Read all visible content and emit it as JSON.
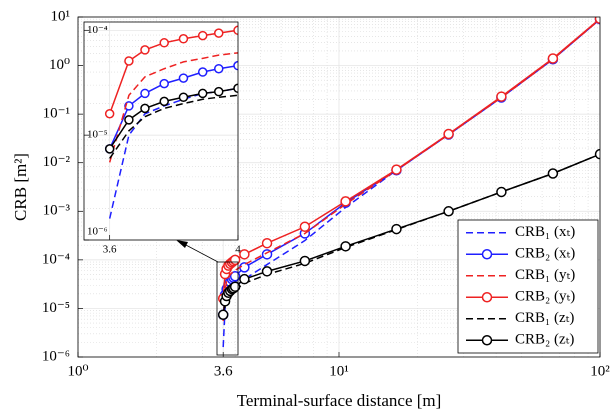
{
  "chart_data": {
    "type": "line",
    "xlabel": "Terminal-surface distance [m]",
    "ylabel": "CRB [m²]",
    "x_log": true,
    "y_log": true,
    "grid": true,
    "minor_grid": true,
    "legend": "lower right",
    "xlim": [
      1,
      100
    ],
    "xticks": [
      {
        "value": 1,
        "label": "10⁰"
      },
      3.6,
      {
        "value": 10,
        "label": "10¹"
      },
      {
        "value": 100,
        "label": "10²"
      }
    ],
    "ylim": [
      1e-06,
      10
    ],
    "yticks": [
      {
        "value": 1e-06,
        "label": "10⁻⁶"
      },
      {
        "value": 1e-05,
        "label": "10⁻⁵"
      },
      {
        "value": 0.0001,
        "label": "10⁻⁴"
      },
      {
        "value": 0.001,
        "label": "10⁻³"
      },
      {
        "value": 0.01,
        "label": "10⁻²"
      },
      {
        "value": 0.1,
        "label": "10⁻¹"
      },
      {
        "value": 1,
        "label": "10⁰"
      },
      {
        "value": 10,
        "label": "10¹"
      }
    ],
    "x": [
      3.6,
      3.66,
      3.71,
      3.77,
      3.83,
      3.89,
      3.94,
      4.0,
      4.34,
      5.3,
      7.4,
      10.6,
      16.6,
      26.3,
      41.9,
      66,
      100
    ],
    "series": [
      {
        "name": "CRB₁ (xₜ)",
        "color": "#1f1fff",
        "dashed": true,
        "marker": false,
        "values": [
          1.6e-06,
          1e-05,
          1.6e-05,
          1.9e-05,
          2.2e-05,
          2.5e-05,
          2.6e-05,
          2.8e-05,
          4e-05,
          8e-05,
          0.00025,
          0.0012,
          0.007,
          0.038,
          0.22,
          1.35,
          9
        ]
      },
      {
        "name": "CRB₂ (xₜ)",
        "color": "#1f1fff",
        "dashed": false,
        "marker": true,
        "values": [
          7.4e-06,
          1.9e-05,
          2.5e-05,
          3.1e-05,
          3.5e-05,
          4e-05,
          4.3e-05,
          4.6e-05,
          7e-05,
          0.00013,
          0.00035,
          0.0015,
          0.007,
          0.038,
          0.22,
          1.35,
          9
        ]
      },
      {
        "name": "CRB₁ (yₜ)",
        "color": "#ee2222",
        "dashed": true,
        "marker": false,
        "values": [
          5.5e-06,
          2.4e-05,
          3.6e-05,
          4.3e-05,
          5e-05,
          5.4e-05,
          5.8e-05,
          6.1e-05,
          8e-05,
          0.00014,
          0.00035,
          0.0014,
          0.007,
          0.038,
          0.22,
          1.35,
          9
        ]
      },
      {
        "name": "CRB₂ (yₜ)",
        "color": "#ee2222",
        "dashed": false,
        "marker": true,
        "values": [
          1.6e-05,
          5.1e-05,
          6.5e-05,
          7.6e-05,
          8.3e-05,
          8.9e-05,
          9.4e-05,
          0.0001,
          0.00013,
          0.00022,
          0.00048,
          0.0016,
          0.0072,
          0.039,
          0.23,
          1.4,
          9.2
        ]
      },
      {
        "name": "CRB₁ (zₜ)",
        "color": "#000000",
        "dashed": true,
        "marker": false,
        "values": [
          6e-06,
          1.1e-05,
          1.5e-05,
          1.8e-05,
          2e-05,
          2.2e-05,
          2.3e-05,
          2.4e-05,
          3.3e-05,
          5e-05,
          8.5e-05,
          0.00018,
          0.00042,
          0.001,
          0.0025,
          0.006,
          0.015
        ]
      },
      {
        "name": "CRB₂ (zₜ)",
        "color": "#000000",
        "dashed": false,
        "marker": true,
        "values": [
          7.4e-06,
          1.4e-05,
          1.8e-05,
          2.1e-05,
          2.3e-05,
          2.5e-05,
          2.6e-05,
          2.8e-05,
          4e-05,
          5.8e-05,
          9.5e-05,
          0.00019,
          0.00043,
          0.001,
          0.0025,
          0.006,
          0.015
        ]
      }
    ],
    "inset": {
      "x_log": false,
      "y_log": true,
      "xlim": [
        3.52,
        4.0
      ],
      "xticks": [
        3.6,
        4
      ],
      "ylim": [
        1e-06,
        0.00012
      ],
      "yticks": [
        {
          "value": 1e-06,
          "label": "10⁻⁶"
        },
        {
          "value": 1e-05,
          "label": "10⁻⁵"
        },
        {
          "value": 0.0001,
          "label": "10⁻⁴"
        }
      ]
    }
  }
}
